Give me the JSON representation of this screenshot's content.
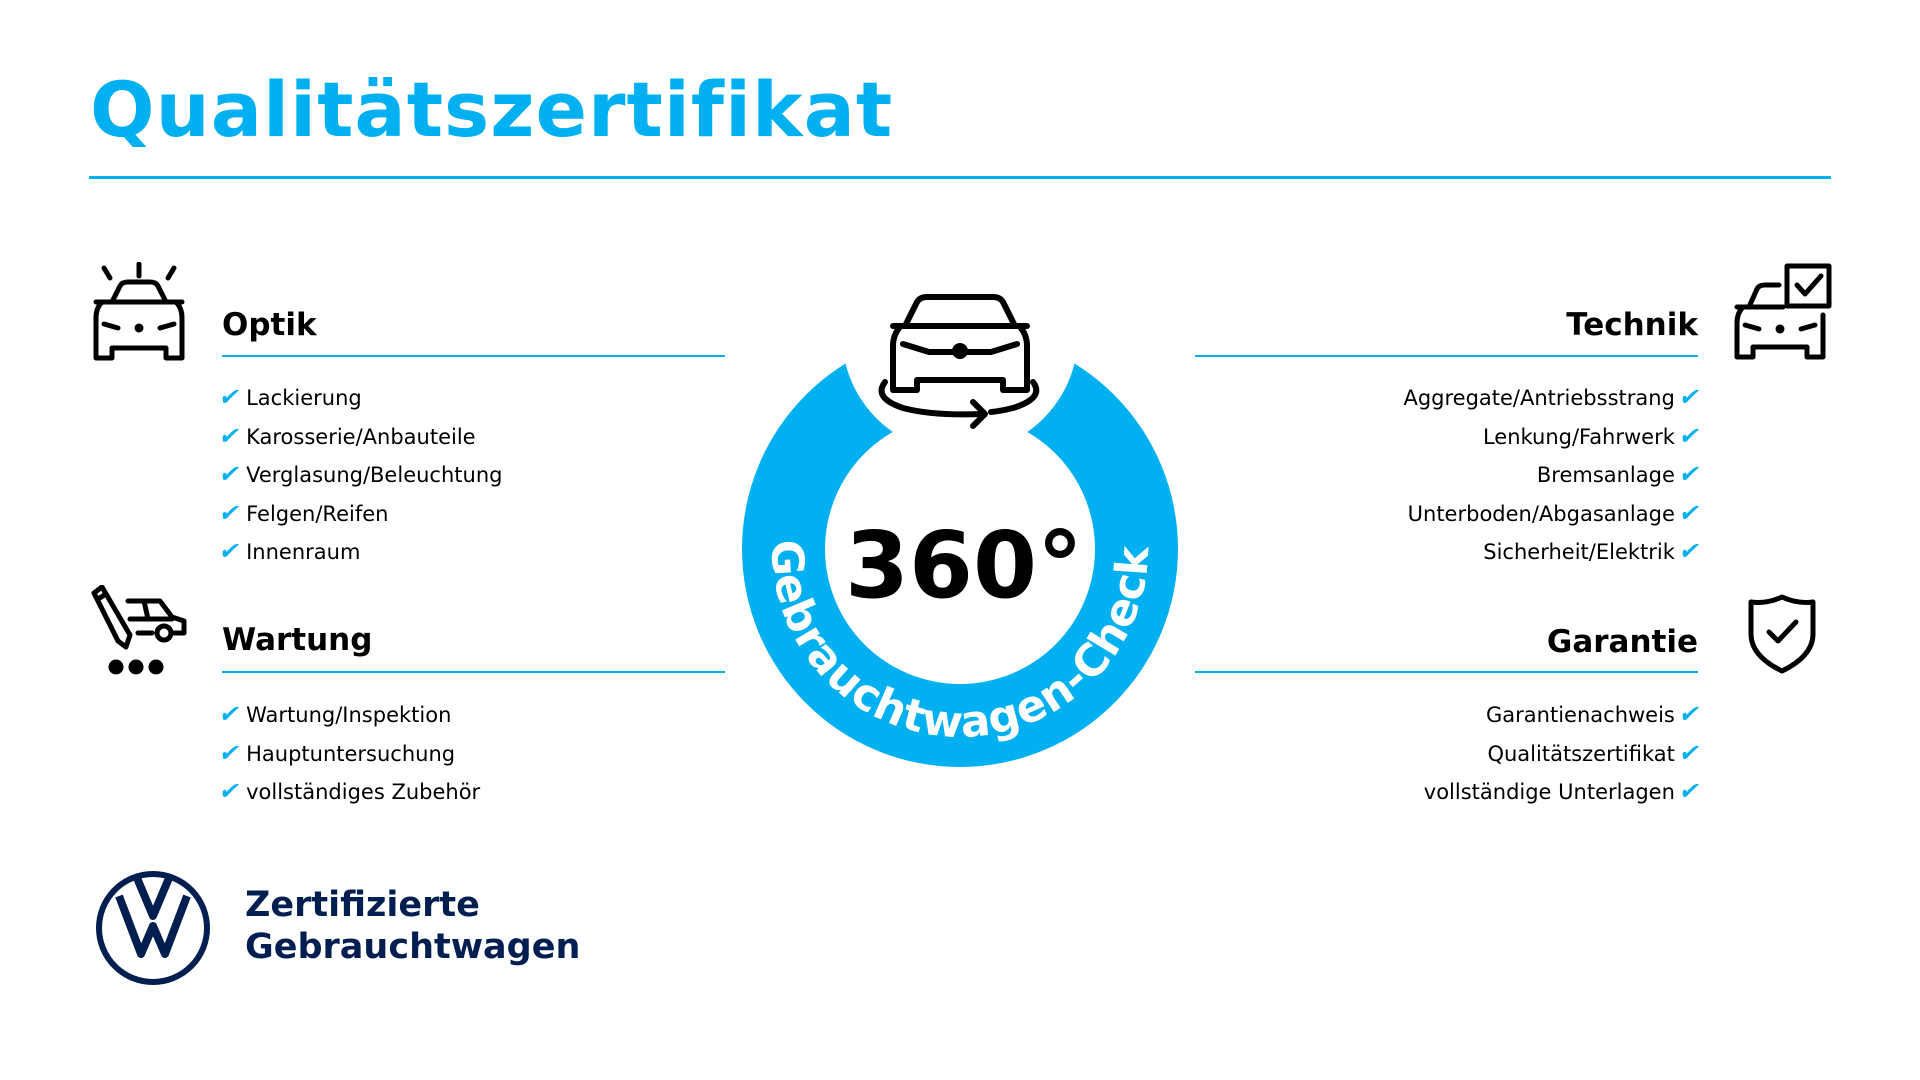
{
  "title": "Qualitätszertifikat",
  "colors": {
    "accent": "#00b0f0",
    "brand_navy": "#001e50",
    "text": "#000000"
  },
  "check_icon": "✔",
  "sections": {
    "optik": {
      "icon": "car-lights-icon",
      "heading": "Optik",
      "items": [
        "Lackierung",
        "Karosserie/Anbauteile",
        "Verglasung/Beleuchtung",
        "Felgen/Reifen",
        "Innenraum"
      ]
    },
    "wartung": {
      "icon": "car-wrench-icon",
      "heading": "Wartung",
      "items": [
        "Wartung/Inspektion",
        "Hauptuntersuchung",
        "vollständiges Zubehör"
      ]
    },
    "technik": {
      "icon": "car-checkbox-icon",
      "heading": "Technik",
      "items": [
        "Aggregate/Antriebsstrang",
        "Lenkung/Fahrwerk",
        "Bremsanlage",
        "Unterboden/Abgasanlage",
        "Sicherheit/Elektrik"
      ]
    },
    "garantie": {
      "icon": "shield-check-icon",
      "heading": "Garantie",
      "items": [
        "Garantienachweis",
        "Qualitätszertifikat",
        "vollständige Unterlagen"
      ]
    }
  },
  "badge": {
    "number": "360°",
    "ring_text": "Gebrauchtwagen-Check",
    "icon": "car-rotate-icon"
  },
  "brand": {
    "logo": "VW",
    "line1": "Zertifizierte",
    "line2": "Gebrauchtwagen"
  }
}
